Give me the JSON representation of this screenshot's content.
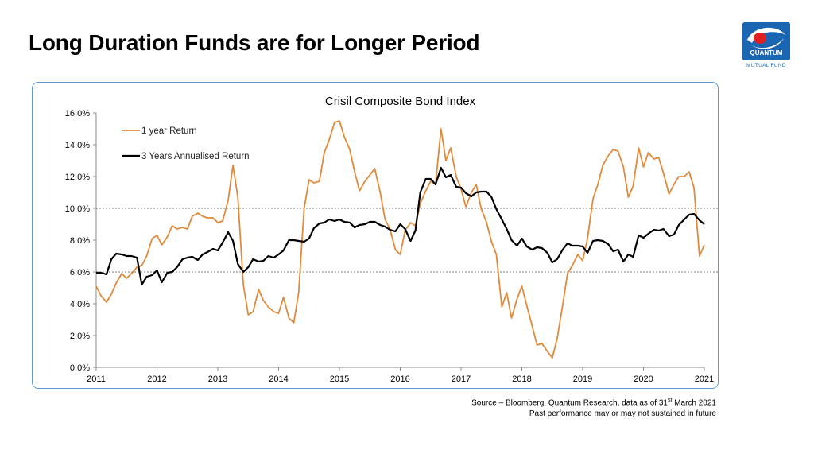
{
  "page": {
    "title": "Long Duration Funds are for Longer Period",
    "logo_text": "QUANTUM",
    "logo_subtext": "MUTUAL FUND",
    "source_prefix": "Source – Bloomberg, Quantum Research, data as of 31",
    "source_sup": "st",
    "source_suffix": " March 2021",
    "disclaimer": "Past performance may or may not sustained in future"
  },
  "colors": {
    "one_year": "#e08a3c",
    "three_year": "#000000",
    "frame": "#5b9bd5",
    "logo_blue": "#1a66b3",
    "logo_red": "#e02020"
  },
  "chart_data": {
    "type": "line",
    "title": "Crisil Composite Bond Index",
    "xlabel": "",
    "ylabel": "",
    "ylim": [
      0,
      16
    ],
    "xlim": [
      2011,
      2021
    ],
    "y_ticks": [
      "0.0%",
      "2.0%",
      "4.0%",
      "6.0%",
      "8.0%",
      "10.0%",
      "12.0%",
      "14.0%",
      "16.0%"
    ],
    "x_ticks": [
      "2011",
      "2012",
      "2013",
      "2014",
      "2015",
      "2016",
      "2017",
      "2018",
      "2019",
      "2020",
      "2021"
    ],
    "reference_lines": [
      6.0,
      10.0
    ],
    "legend_position": "top-left",
    "series": [
      {
        "name": "1 year Return",
        "color": "#e08a3c",
        "points": [
          [
            2011.0,
            5.1
          ],
          [
            2011.08,
            4.5
          ],
          [
            2011.17,
            4.1
          ],
          [
            2011.25,
            4.6
          ],
          [
            2011.33,
            5.3
          ],
          [
            2011.42,
            5.9
          ],
          [
            2011.5,
            5.6
          ],
          [
            2011.58,
            5.9
          ],
          [
            2011.67,
            6.3
          ],
          [
            2011.75,
            6.4
          ],
          [
            2011.83,
            7.0
          ],
          [
            2011.92,
            8.1
          ],
          [
            2012.0,
            8.3
          ],
          [
            2012.08,
            7.7
          ],
          [
            2012.17,
            8.2
          ],
          [
            2012.25,
            8.9
          ],
          [
            2012.33,
            8.7
          ],
          [
            2012.42,
            8.8
          ],
          [
            2012.5,
            8.7
          ],
          [
            2012.58,
            9.5
          ],
          [
            2012.67,
            9.7
          ],
          [
            2012.75,
            9.5
          ],
          [
            2012.83,
            9.4
          ],
          [
            2012.92,
            9.4
          ],
          [
            2013.0,
            9.1
          ],
          [
            2013.08,
            9.2
          ],
          [
            2013.17,
            10.5
          ],
          [
            2013.25,
            12.7
          ],
          [
            2013.33,
            10.7
          ],
          [
            2013.42,
            5.2
          ],
          [
            2013.5,
            3.3
          ],
          [
            2013.58,
            3.5
          ],
          [
            2013.67,
            4.9
          ],
          [
            2013.75,
            4.2
          ],
          [
            2013.83,
            3.8
          ],
          [
            2013.92,
            3.5
          ],
          [
            2014.0,
            3.4
          ],
          [
            2014.08,
            4.4
          ],
          [
            2014.17,
            3.1
          ],
          [
            2014.25,
            2.8
          ],
          [
            2014.33,
            4.7
          ],
          [
            2014.42,
            10.0
          ],
          [
            2014.5,
            11.8
          ],
          [
            2014.58,
            11.6
          ],
          [
            2014.67,
            11.7
          ],
          [
            2014.75,
            13.5
          ],
          [
            2014.83,
            14.3
          ],
          [
            2014.92,
            15.4
          ],
          [
            2015.0,
            15.5
          ],
          [
            2015.08,
            14.5
          ],
          [
            2015.17,
            13.7
          ],
          [
            2015.25,
            12.3
          ],
          [
            2015.33,
            11.1
          ],
          [
            2015.42,
            11.7
          ],
          [
            2015.5,
            12.1
          ],
          [
            2015.58,
            12.5
          ],
          [
            2015.67,
            11.0
          ],
          [
            2015.75,
            9.3
          ],
          [
            2015.83,
            8.7
          ],
          [
            2015.92,
            7.4
          ],
          [
            2016.0,
            7.1
          ],
          [
            2016.08,
            8.6
          ],
          [
            2016.17,
            9.1
          ],
          [
            2016.25,
            8.9
          ],
          [
            2016.33,
            10.3
          ],
          [
            2016.42,
            11.1
          ],
          [
            2016.5,
            11.7
          ],
          [
            2016.58,
            11.5
          ],
          [
            2016.67,
            15.0
          ],
          [
            2016.75,
            13.0
          ],
          [
            2016.83,
            13.8
          ],
          [
            2016.92,
            12.0
          ],
          [
            2017.0,
            11.2
          ],
          [
            2017.08,
            10.1
          ],
          [
            2017.17,
            11.0
          ],
          [
            2017.25,
            11.5
          ],
          [
            2017.33,
            10.0
          ],
          [
            2017.42,
            9.1
          ],
          [
            2017.5,
            7.9
          ],
          [
            2017.58,
            7.1
          ],
          [
            2017.67,
            3.8
          ],
          [
            2017.75,
            4.7
          ],
          [
            2017.83,
            3.1
          ],
          [
            2017.92,
            4.3
          ],
          [
            2018.0,
            5.1
          ],
          [
            2018.08,
            3.9
          ],
          [
            2018.17,
            2.6
          ],
          [
            2018.25,
            1.4
          ],
          [
            2018.33,
            1.5
          ],
          [
            2018.42,
            1.0
          ],
          [
            2018.5,
            0.6
          ],
          [
            2018.58,
            1.8
          ],
          [
            2018.67,
            3.9
          ],
          [
            2018.75,
            5.9
          ],
          [
            2018.83,
            6.4
          ],
          [
            2018.92,
            7.1
          ],
          [
            2019.0,
            6.7
          ],
          [
            2019.08,
            8.1
          ],
          [
            2019.17,
            10.6
          ],
          [
            2019.25,
            11.5
          ],
          [
            2019.33,
            12.7
          ],
          [
            2019.42,
            13.3
          ],
          [
            2019.5,
            13.7
          ],
          [
            2019.58,
            13.6
          ],
          [
            2019.67,
            12.6
          ],
          [
            2019.75,
            10.7
          ],
          [
            2019.83,
            11.4
          ],
          [
            2019.92,
            13.8
          ],
          [
            2020.0,
            12.6
          ],
          [
            2020.08,
            13.5
          ],
          [
            2020.17,
            13.1
          ],
          [
            2020.25,
            13.2
          ],
          [
            2020.33,
            12.2
          ],
          [
            2020.42,
            10.9
          ],
          [
            2020.5,
            11.5
          ],
          [
            2020.58,
            12.0
          ],
          [
            2020.67,
            12.0
          ],
          [
            2020.75,
            12.3
          ],
          [
            2020.83,
            11.3
          ],
          [
            2020.92,
            7.0
          ],
          [
            2021.0,
            7.7
          ]
        ]
      },
      {
        "name": "3 Years Annualised Return",
        "color": "#000000",
        "points": [
          [
            2011.0,
            5.95
          ],
          [
            2011.08,
            5.95
          ],
          [
            2011.17,
            5.85
          ],
          [
            2011.25,
            6.8
          ],
          [
            2011.33,
            7.15
          ],
          [
            2011.42,
            7.1
          ],
          [
            2011.5,
            7.0
          ],
          [
            2011.58,
            7.0
          ],
          [
            2011.67,
            6.9
          ],
          [
            2011.75,
            5.2
          ],
          [
            2011.83,
            5.7
          ],
          [
            2011.92,
            5.8
          ],
          [
            2012.0,
            6.1
          ],
          [
            2012.08,
            5.35
          ],
          [
            2012.17,
            5.95
          ],
          [
            2012.25,
            6.0
          ],
          [
            2012.33,
            6.3
          ],
          [
            2012.42,
            6.8
          ],
          [
            2012.5,
            6.9
          ],
          [
            2012.58,
            6.95
          ],
          [
            2012.67,
            6.75
          ],
          [
            2012.75,
            7.1
          ],
          [
            2012.83,
            7.25
          ],
          [
            2012.92,
            7.45
          ],
          [
            2013.0,
            7.35
          ],
          [
            2013.08,
            7.85
          ],
          [
            2013.17,
            8.5
          ],
          [
            2013.25,
            7.95
          ],
          [
            2013.33,
            6.5
          ],
          [
            2013.42,
            6.0
          ],
          [
            2013.5,
            6.3
          ],
          [
            2013.58,
            6.8
          ],
          [
            2013.67,
            6.65
          ],
          [
            2013.75,
            6.7
          ],
          [
            2013.83,
            7.0
          ],
          [
            2013.92,
            6.9
          ],
          [
            2014.0,
            7.1
          ],
          [
            2014.08,
            7.35
          ],
          [
            2014.17,
            8.0
          ],
          [
            2014.25,
            8.0
          ],
          [
            2014.33,
            7.95
          ],
          [
            2014.42,
            7.9
          ],
          [
            2014.5,
            8.1
          ],
          [
            2014.58,
            8.75
          ],
          [
            2014.67,
            9.05
          ],
          [
            2014.75,
            9.1
          ],
          [
            2014.83,
            9.3
          ],
          [
            2014.92,
            9.2
          ],
          [
            2015.0,
            9.3
          ],
          [
            2015.08,
            9.15
          ],
          [
            2015.17,
            9.1
          ],
          [
            2015.25,
            8.8
          ],
          [
            2015.33,
            8.95
          ],
          [
            2015.42,
            9.0
          ],
          [
            2015.5,
            9.15
          ],
          [
            2015.58,
            9.15
          ],
          [
            2015.67,
            8.95
          ],
          [
            2015.75,
            8.85
          ],
          [
            2015.83,
            8.65
          ],
          [
            2015.92,
            8.55
          ],
          [
            2016.0,
            9.0
          ],
          [
            2016.08,
            8.7
          ],
          [
            2016.17,
            7.95
          ],
          [
            2016.25,
            8.6
          ],
          [
            2016.33,
            11.0
          ],
          [
            2016.42,
            11.85
          ],
          [
            2016.5,
            11.85
          ],
          [
            2016.58,
            11.5
          ],
          [
            2016.67,
            12.55
          ],
          [
            2016.75,
            11.95
          ],
          [
            2016.83,
            12.1
          ],
          [
            2016.92,
            11.35
          ],
          [
            2017.0,
            11.3
          ],
          [
            2017.08,
            10.95
          ],
          [
            2017.17,
            10.75
          ],
          [
            2017.25,
            11.0
          ],
          [
            2017.33,
            11.05
          ],
          [
            2017.42,
            11.05
          ],
          [
            2017.5,
            10.7
          ],
          [
            2017.58,
            9.95
          ],
          [
            2017.67,
            9.3
          ],
          [
            2017.75,
            8.7
          ],
          [
            2017.83,
            8.0
          ],
          [
            2017.92,
            7.65
          ],
          [
            2018.0,
            8.1
          ],
          [
            2018.08,
            7.6
          ],
          [
            2018.17,
            7.4
          ],
          [
            2018.25,
            7.55
          ],
          [
            2018.33,
            7.5
          ],
          [
            2018.42,
            7.2
          ],
          [
            2018.5,
            6.6
          ],
          [
            2018.58,
            6.8
          ],
          [
            2018.67,
            7.4
          ],
          [
            2018.75,
            7.8
          ],
          [
            2018.83,
            7.65
          ],
          [
            2018.92,
            7.65
          ],
          [
            2019.0,
            7.6
          ],
          [
            2019.08,
            7.2
          ],
          [
            2019.17,
            7.95
          ],
          [
            2019.25,
            8.0
          ],
          [
            2019.33,
            7.95
          ],
          [
            2019.42,
            7.75
          ],
          [
            2019.5,
            7.3
          ],
          [
            2019.58,
            7.4
          ],
          [
            2019.67,
            6.65
          ],
          [
            2019.75,
            7.1
          ],
          [
            2019.83,
            6.95
          ],
          [
            2019.92,
            8.3
          ],
          [
            2020.0,
            8.15
          ],
          [
            2020.08,
            8.4
          ],
          [
            2020.17,
            8.65
          ],
          [
            2020.25,
            8.6
          ],
          [
            2020.33,
            8.7
          ],
          [
            2020.42,
            8.25
          ],
          [
            2020.5,
            8.35
          ],
          [
            2020.58,
            8.95
          ],
          [
            2020.67,
            9.3
          ],
          [
            2020.75,
            9.6
          ],
          [
            2020.83,
            9.65
          ],
          [
            2020.92,
            9.25
          ],
          [
            2021.0,
            9.0
          ]
        ]
      }
    ]
  }
}
